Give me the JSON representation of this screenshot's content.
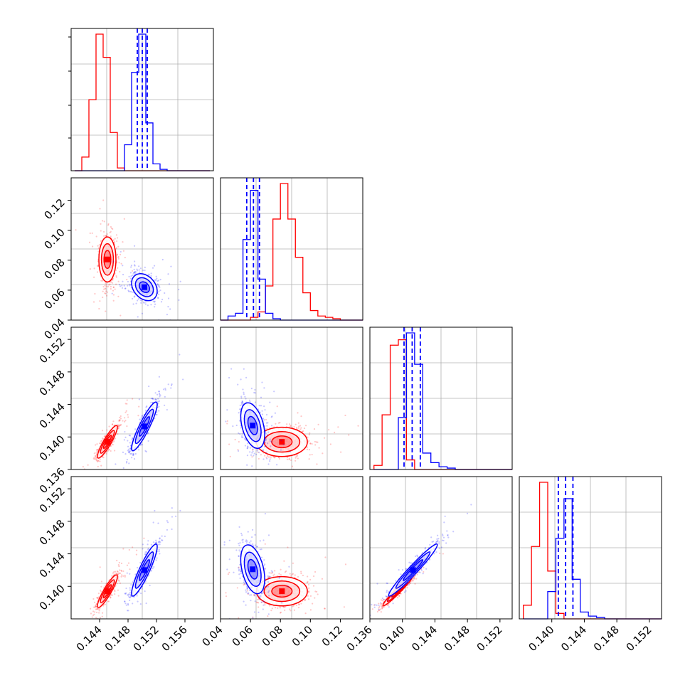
{
  "figure": {
    "type": "corner_plot",
    "grid": true,
    "colors": {
      "series_a": "#ff0000",
      "series_b": "#0000ff",
      "grid": "#b0b0b0",
      "axes": "#000000"
    },
    "quantile_line_style": "dashed",
    "quantiles_shown_for": "blue"
  },
  "chart_data": [
    {
      "type": "histogram",
      "panel": "1-1",
      "xlim": [
        0.14,
        0.16
      ],
      "bins": [
        0.141,
        0.142,
        0.143,
        0.144,
        0.145,
        0.146,
        0.147,
        0.148,
        0.149,
        0.15,
        0.151,
        0.152,
        0.153,
        0.154,
        0.155,
        0.156,
        0.157,
        0.158,
        0.159
      ],
      "series": [
        {
          "color": "#ff0000",
          "values": [
            0.0,
            0.1,
            0.52,
            1.0,
            0.83,
            0.28,
            0.02,
            0.0,
            0.0,
            0.0,
            0.0,
            0.0,
            0.0,
            0.0,
            0.0,
            0.0,
            0.0,
            0.0,
            0.0
          ]
        },
        {
          "color": "#0000ff",
          "values": [
            0.0,
            0.0,
            0.0,
            0.0,
            0.0,
            0.0,
            0.0,
            0.19,
            0.72,
            1.0,
            0.35,
            0.05,
            0.01,
            0.0,
            0.0,
            0.0,
            0.0,
            0.0,
            0.0
          ]
        }
      ],
      "quantiles_blue": [
        0.1493,
        0.15,
        0.1507
      ]
    },
    {
      "type": "scatter",
      "panel": "2-1",
      "xlim": [
        0.14,
        0.16
      ],
      "ylim": [
        0.04,
        0.135
      ],
      "yticks": [
        "0.04",
        "0.06",
        "0.08",
        "0.10",
        "0.12"
      ],
      "series": [
        {
          "color": "#ff0000",
          "center": [
            0.1451,
            0.0805
          ],
          "spread": [
            0.0006,
            0.0075
          ],
          "rho": 0.0,
          "n": 700
        },
        {
          "color": "#0000ff",
          "center": [
            0.1503,
            0.062
          ],
          "spread": [
            0.0009,
            0.0045
          ],
          "rho": -0.3,
          "n": 650
        }
      ]
    },
    {
      "type": "histogram",
      "panel": "2-2",
      "xlim": [
        0.04,
        0.135
      ],
      "bins": [
        0.0425,
        0.0475,
        0.0525,
        0.0575,
        0.0625,
        0.0675,
        0.0725,
        0.0775,
        0.0825,
        0.0875,
        0.0925,
        0.0975,
        0.1025,
        0.1075,
        0.1125,
        0.1175,
        0.1225,
        0.1275,
        0.1325
      ],
      "series": [
        {
          "color": "#ff0000",
          "values": [
            0.0,
            0.0,
            0.0,
            0.0,
            0.02,
            0.06,
            0.25,
            0.74,
            1.0,
            0.74,
            0.46,
            0.2,
            0.07,
            0.03,
            0.02,
            0.01,
            0.0,
            0.0,
            0.0
          ]
        },
        {
          "color": "#0000ff",
          "values": [
            0.0,
            0.03,
            0.05,
            0.59,
            0.95,
            0.3,
            0.05,
            0.01,
            0.0,
            0.0,
            0.0,
            0.0,
            0.0,
            0.0,
            0.0,
            0.0,
            0.0,
            0.0,
            0.0
          ]
        }
      ],
      "quantiles_blue": [
        0.0575,
        0.062,
        0.066
      ]
    },
    {
      "type": "scatter",
      "panel": "3-1",
      "xlim": [
        0.14,
        0.16
      ],
      "ylim": [
        0.136,
        0.1535
      ],
      "yticks": [
        "0.136",
        "0.140",
        "0.144",
        "0.148",
        "0.152"
      ],
      "series": [
        {
          "color": "#ff0000",
          "center": [
            0.1451,
            0.1394
          ],
          "spread": [
            0.0007,
            0.001
          ],
          "rho": 0.9,
          "n": 700
        },
        {
          "color": "#0000ff",
          "center": [
            0.1503,
            0.1413
          ],
          "spread": [
            0.0009,
            0.0015
          ],
          "rho": 0.9,
          "n": 650
        }
      ]
    },
    {
      "type": "scatter",
      "panel": "3-2",
      "xlim": [
        0.04,
        0.135
      ],
      "ylim": [
        0.136,
        0.1535
      ],
      "series": [
        {
          "color": "#ff0000",
          "center": [
            0.081,
            0.1394
          ],
          "spread": [
            0.0085,
            0.0009
          ],
          "rho": 0.0,
          "n": 700
        },
        {
          "color": "#0000ff",
          "center": [
            0.0615,
            0.1414
          ],
          "spread": [
            0.004,
            0.0014
          ],
          "rho": -0.4,
          "n": 650
        }
      ]
    },
    {
      "type": "histogram",
      "panel": "3-3",
      "xlim": [
        0.136,
        0.1535
      ],
      "bins": [
        0.137,
        0.138,
        0.139,
        0.14,
        0.141,
        0.142,
        0.143,
        0.144,
        0.145,
        0.146,
        0.147,
        0.148,
        0.149,
        0.15,
        0.151,
        0.152,
        0.153
      ],
      "series": [
        {
          "color": "#ff0000",
          "values": [
            0.03,
            0.4,
            0.91,
            0.95,
            0.07,
            0.0,
            0.0,
            0.0,
            0.0,
            0.0,
            0.0,
            0.0,
            0.0,
            0.0,
            0.0,
            0.0,
            0.0
          ]
        },
        {
          "color": "#0000ff",
          "values": [
            0.0,
            0.0,
            0.0,
            0.38,
            1.0,
            0.77,
            0.12,
            0.05,
            0.02,
            0.01,
            0.0,
            0.0,
            0.0,
            0.0,
            0.0,
            0.0,
            0.0
          ]
        }
      ],
      "quantiles_blue": [
        0.1402,
        0.1412,
        0.1422
      ]
    },
    {
      "type": "scatter",
      "panel": "4-1",
      "xlim": [
        0.14,
        0.16
      ],
      "ylim": [
        0.136,
        0.1535
      ],
      "yticks": [
        "0.140",
        "0.144",
        "0.148",
        "0.152"
      ],
      "series": [
        {
          "color": "#ff0000",
          "center": [
            0.1451,
            0.1394
          ],
          "spread": [
            0.0007,
            0.001
          ],
          "rho": 0.9,
          "n": 700
        },
        {
          "color": "#0000ff",
          "center": [
            0.1503,
            0.142
          ],
          "spread": [
            0.0009,
            0.0016
          ],
          "rho": 0.9,
          "n": 650
        }
      ]
    },
    {
      "type": "scatter",
      "panel": "4-2",
      "xlim": [
        0.04,
        0.135
      ],
      "ylim": [
        0.136,
        0.1535
      ],
      "series": [
        {
          "color": "#ff0000",
          "center": [
            0.081,
            0.1394
          ],
          "spread": [
            0.0085,
            0.0009
          ],
          "rho": 0.0,
          "n": 700
        },
        {
          "color": "#0000ff",
          "center": [
            0.0615,
            0.1421
          ],
          "spread": [
            0.004,
            0.0015
          ],
          "rho": -0.4,
          "n": 650
        }
      ]
    },
    {
      "type": "scatter",
      "panel": "4-3",
      "xlim": [
        0.136,
        0.1535
      ],
      "ylim": [
        0.136,
        0.1535
      ],
      "series": [
        {
          "color": "#ff0000",
          "center": [
            0.1394,
            0.1394
          ],
          "spread": [
            0.0009,
            0.0009
          ],
          "rho": 0.97,
          "n": 700
        },
        {
          "color": "#0000ff",
          "center": [
            0.1413,
            0.142
          ],
          "spread": [
            0.0015,
            0.0016
          ],
          "rho": 0.97,
          "n": 650
        }
      ]
    },
    {
      "type": "histogram",
      "panel": "4-4",
      "xlim": [
        0.136,
        0.1535
      ],
      "bins": [
        0.137,
        0.138,
        0.139,
        0.14,
        0.141,
        0.142,
        0.143,
        0.144,
        0.145,
        0.146,
        0.147,
        0.148,
        0.149,
        0.15,
        0.151,
        0.152,
        0.153
      ],
      "series": [
        {
          "color": "#ff0000",
          "values": [
            0.1,
            0.53,
            1.0,
            0.35,
            0.04,
            0.0,
            0.0,
            0.0,
            0.0,
            0.0,
            0.0,
            0.0,
            0.0,
            0.0,
            0.0,
            0.0,
            0.0
          ]
        },
        {
          "color": "#0000ff",
          "values": [
            0.0,
            0.0,
            0.0,
            0.2,
            0.59,
            0.88,
            0.29,
            0.05,
            0.02,
            0.01,
            0.0,
            0.0,
            0.0,
            0.0,
            0.0,
            0.0,
            0.0
          ]
        }
      ],
      "quantiles_blue": [
        0.1408,
        0.1417,
        0.1426
      ]
    }
  ],
  "x_tick_labels": {
    "col1": [
      "0.144",
      "0.148",
      "0.152",
      "0.156"
    ],
    "col2": [
      "0.04",
      "0.06",
      "0.08",
      "0.10",
      "0.12"
    ],
    "col3": [
      "0.136",
      "0.140",
      "0.144",
      "0.148",
      "0.152"
    ],
    "col4": [
      "0.140",
      "0.144",
      "0.148",
      "0.152"
    ]
  }
}
